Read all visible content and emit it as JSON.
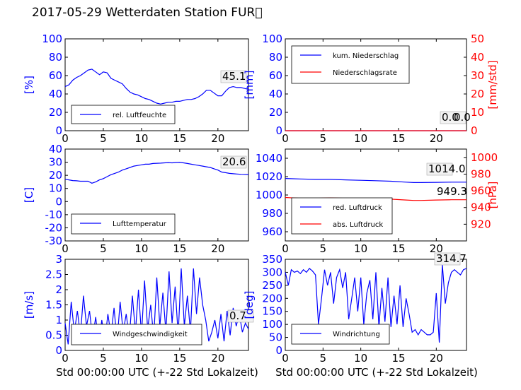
{
  "page": {
    "title": "2017-05-29 Wetterdaten Station FUR\u0000"
  },
  "colors": {
    "blue": "#0000ff",
    "red": "#ff0000",
    "black": "#000000"
  },
  "chart_data": [
    {
      "id": "humidity",
      "type": "line",
      "ylabel": "[%]",
      "xlim": [
        0,
        24
      ],
      "ylim": [
        0,
        100
      ],
      "xticks": [
        0,
        5,
        10,
        15,
        20
      ],
      "yticks": [
        0,
        20,
        40,
        60,
        80,
        100
      ],
      "last_value": "45.1",
      "series": [
        {
          "name": "rel. Luftfeuchte",
          "color": "blue",
          "x": [
            0,
            0.5,
            1,
            1.5,
            2,
            2.5,
            3,
            3.5,
            4,
            4.5,
            5,
            5.5,
            6,
            6.5,
            7,
            7.5,
            8,
            8.5,
            9,
            9.5,
            10,
            10.5,
            11,
            11.5,
            12,
            12.5,
            13,
            13.5,
            14,
            14.5,
            15,
            15.5,
            16,
            16.5,
            17,
            17.5,
            18,
            18.5,
            19,
            19.5,
            20,
            20.5,
            21,
            21.5,
            22,
            22.5,
            23,
            23.5,
            24
          ],
          "y": [
            48,
            50,
            55,
            58,
            60,
            63,
            66,
            67,
            64,
            61,
            64,
            63,
            57,
            55,
            53,
            51,
            46,
            42,
            40,
            39,
            37,
            35,
            34,
            32,
            30,
            29,
            30,
            31,
            31,
            32,
            32,
            33,
            34,
            34,
            35,
            37,
            40,
            44,
            44,
            41,
            38,
            38,
            43,
            47,
            48,
            47,
            47,
            46,
            45
          ]
        }
      ]
    },
    {
      "id": "precipitation",
      "type": "line",
      "ylabel": "[mm]",
      "y2label": "[mm/std]",
      "xlim": [
        0,
        24
      ],
      "ylim": [
        0,
        100
      ],
      "y2lim": [
        0,
        50
      ],
      "xticks": [
        0,
        5,
        10,
        15,
        20
      ],
      "yticks": [
        0,
        20,
        40,
        60,
        80,
        100
      ],
      "y2ticks": [
        0,
        10,
        20,
        30,
        40,
        50
      ],
      "last_value": "0.0",
      "last_value_2": "0.0",
      "series": [
        {
          "name": "kum. Niederschlag",
          "color": "blue",
          "x": [
            0,
            24
          ],
          "y": [
            0,
            0
          ]
        },
        {
          "name": "Niederschlagsrate",
          "color": "red",
          "axis": "right",
          "x": [
            0,
            24
          ],
          "y": [
            0,
            0
          ]
        }
      ]
    },
    {
      "id": "temperature",
      "type": "line",
      "ylabel": "[C]",
      "xlim": [
        0,
        24
      ],
      "ylim": [
        -30,
        40
      ],
      "xticks": [
        0,
        5,
        10,
        15,
        20
      ],
      "yticks": [
        -30,
        -20,
        -10,
        0,
        10,
        20,
        30,
        40
      ],
      "last_value": "20.6",
      "series": [
        {
          "name": "Lufttemperatur",
          "color": "blue",
          "x": [
            0,
            0.5,
            1,
            1.5,
            2,
            2.5,
            3,
            3.5,
            4,
            4.5,
            5,
            5.5,
            6,
            6.5,
            7,
            7.5,
            8,
            8.5,
            9,
            9.5,
            10,
            10.5,
            11,
            11.5,
            12,
            12.5,
            13,
            13.5,
            14,
            14.5,
            15,
            15.5,
            16,
            16.5,
            17,
            17.5,
            18,
            18.5,
            19,
            19.5,
            20,
            20.5,
            21,
            21.5,
            22,
            22.5,
            23,
            23.5,
            24
          ],
          "y": [
            17,
            16.5,
            16,
            15.8,
            15.5,
            15.5,
            15.5,
            14,
            15,
            16.5,
            17.5,
            19,
            20.5,
            21.5,
            22.5,
            24,
            25,
            26,
            27,
            27.5,
            28,
            28.5,
            28.5,
            29,
            29.2,
            29.3,
            29.5,
            29.7,
            29.5,
            29.8,
            30,
            29.5,
            29,
            28.5,
            28,
            27.5,
            27,
            26.5,
            26,
            25,
            24,
            22.5,
            22,
            21.5,
            21.2,
            21,
            20.8,
            20.7,
            20.6
          ]
        }
      ]
    },
    {
      "id": "pressure",
      "type": "line",
      "xlim": [
        0,
        24
      ],
      "ylim": [
        950,
        1050
      ],
      "y2lim": [
        900,
        1010
      ],
      "y2label": "[hPa]",
      "xticks": [
        0,
        5,
        10,
        15,
        20
      ],
      "yticks": [
        960,
        980,
        1000,
        1020,
        1040
      ],
      "y2ticks": [
        920,
        940,
        960,
        980,
        1000
      ],
      "last_value": "1014.0",
      "last_value_2": "949.3",
      "series": [
        {
          "name": "red. Luftdruck",
          "color": "blue",
          "x": [
            0,
            2,
            4,
            6,
            8,
            10,
            12,
            14,
            16,
            17,
            18,
            20,
            22,
            24
          ],
          "y": [
            1018,
            1017.5,
            1017,
            1017,
            1016.5,
            1016,
            1015.5,
            1015,
            1014,
            1013.5,
            1013.5,
            1013.8,
            1014,
            1014
          ]
        },
        {
          "name": "abs. Luftdruck",
          "color": "red",
          "axis": "right",
          "x": [
            0,
            2,
            4,
            6,
            8,
            10,
            12,
            14,
            16,
            17,
            18,
            20,
            22,
            24
          ],
          "y": [
            952,
            951,
            951,
            951.5,
            951,
            951,
            950.5,
            950,
            949,
            948.5,
            948.5,
            949,
            949.3,
            949.3
          ]
        }
      ]
    },
    {
      "id": "wind-speed",
      "type": "line",
      "ylabel": "[m/s]",
      "xlim": [
        0,
        24
      ],
      "ylim": [
        0,
        3.0
      ],
      "xticks": [
        0,
        5,
        10,
        15,
        20
      ],
      "yticks": [
        0.0,
        0.5,
        1.0,
        1.5,
        2.0,
        2.5,
        3.0
      ],
      "last_value": "0.7",
      "series": [
        {
          "name": "Windgeschwindigkeit",
          "color": "blue",
          "x": [
            0,
            0.4,
            0.8,
            1.2,
            1.6,
            2,
            2.4,
            2.8,
            3.2,
            3.6,
            4,
            4.4,
            4.8,
            5.2,
            5.6,
            6,
            6.4,
            6.8,
            7.2,
            7.6,
            8,
            8.4,
            8.8,
            9.2,
            9.6,
            10,
            10.4,
            10.8,
            11.2,
            11.6,
            12,
            12.4,
            12.8,
            13.2,
            13.6,
            14,
            14.4,
            14.8,
            15.2,
            15.6,
            16,
            16.4,
            16.8,
            17.2,
            17.6,
            18,
            18.4,
            18.8,
            19.2,
            19.6,
            20,
            20.4,
            20.8,
            21.2,
            21.6,
            22,
            22.4,
            22.8,
            23.2,
            23.6,
            24
          ],
          "y": [
            0.9,
            0.2,
            1.6,
            0.6,
            1.3,
            0.5,
            1.8,
            0.8,
            1.3,
            0.4,
            1.1,
            0.2,
            1.0,
            0.3,
            1.2,
            0.5,
            1.4,
            0.3,
            1.6,
            0.6,
            1.2,
            0.4,
            1.8,
            0.6,
            2.0,
            0.5,
            2.3,
            0.7,
            1.5,
            0.4,
            2.4,
            0.8,
            1.9,
            0.6,
            2.6,
            0.9,
            2.1,
            0.5,
            2.7,
            0.8,
            1.8,
            0.6,
            2.7,
            1.2,
            2.4,
            1.5,
            1.0,
            0.3,
            0.6,
            1.0,
            0.4,
            1.2,
            0.3,
            1.3,
            0.5,
            1.4,
            0.8,
            1.2,
            0.6,
            0.9,
            0.7
          ]
        }
      ]
    },
    {
      "id": "wind-direction",
      "type": "line",
      "ylabel": "[deg]",
      "xlim": [
        0,
        24
      ],
      "ylim": [
        0,
        350
      ],
      "xticks": [
        0,
        5,
        10,
        15,
        20
      ],
      "yticks": [
        0,
        50,
        100,
        150,
        200,
        250,
        300,
        350
      ],
      "last_value": "314.7",
      "series": [
        {
          "name": "Windrichtung",
          "color": "blue",
          "x": [
            0,
            0.4,
            0.8,
            1.2,
            1.6,
            2,
            2.4,
            2.8,
            3.2,
            3.6,
            4,
            4.4,
            4.8,
            5.2,
            5.6,
            6,
            6.4,
            6.8,
            7.2,
            7.6,
            8,
            8.4,
            8.8,
            9.2,
            9.6,
            10,
            10.4,
            10.8,
            11.2,
            11.6,
            12,
            12.4,
            12.8,
            13.2,
            13.6,
            14,
            14.4,
            14.8,
            15.2,
            15.6,
            16,
            16.4,
            16.8,
            17.2,
            17.6,
            18,
            18.4,
            18.8,
            19.2,
            19.6,
            20,
            20.4,
            20.8,
            21.2,
            21.6,
            22,
            22.4,
            22.8,
            23.2,
            23.6,
            24
          ],
          "y": [
            300,
            250,
            310,
            300,
            305,
            295,
            310,
            300,
            315,
            305,
            290,
            100,
            200,
            310,
            250,
            300,
            180,
            280,
            310,
            240,
            300,
            120,
            200,
            280,
            150,
            280,
            100,
            220,
            270,
            120,
            300,
            90,
            240,
            110,
            280,
            90,
            210,
            100,
            250,
            90,
            200,
            140,
            70,
            80,
            60,
            80,
            70,
            60,
            60,
            70,
            220,
            30,
            330,
            180,
            260,
            300,
            310,
            300,
            290,
            310,
            315
          ]
        }
      ]
    }
  ],
  "xlabels": {
    "left": "Std 00:00:00 UTC (+-22 Std Lokalzeit)",
    "right": "Std 00:00:00 UTC (+-22 Std Lokalzeit)"
  }
}
